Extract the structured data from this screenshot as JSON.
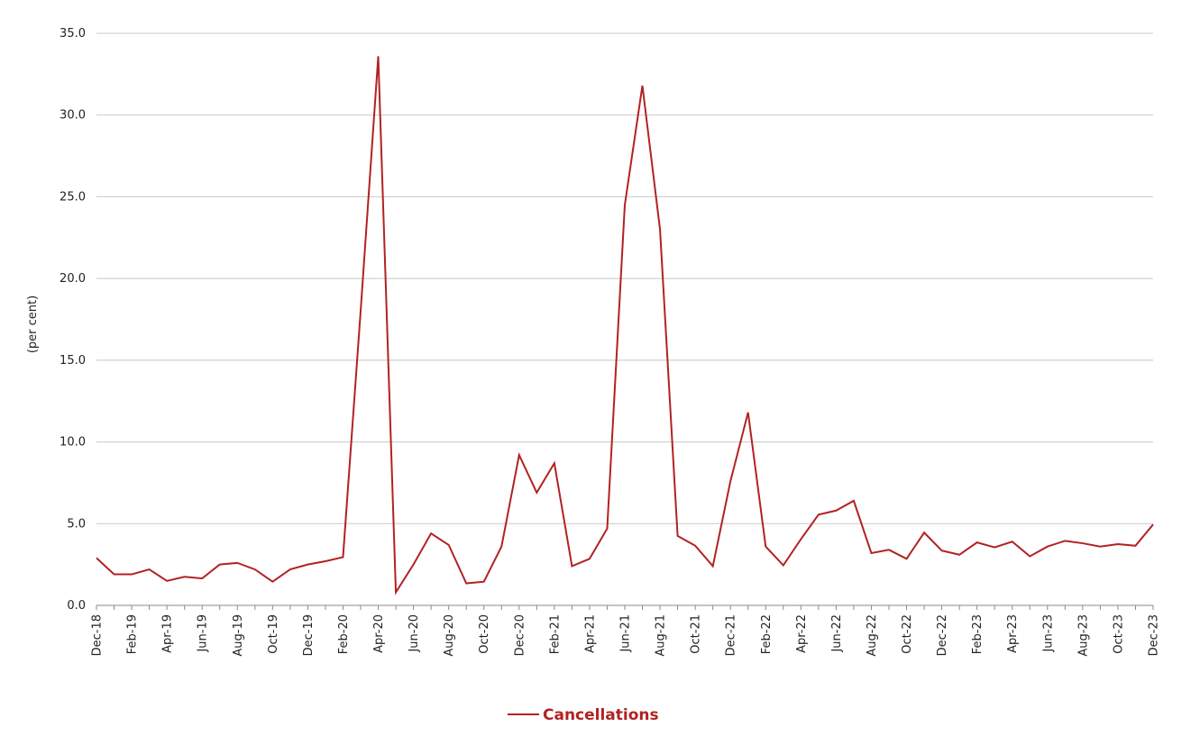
{
  "chart_data": {
    "type": "line",
    "ylabel": "(per cent)",
    "ylim": [
      0,
      35
    ],
    "yticks": [
      "0.0",
      "5.0",
      "10.0",
      "15.0",
      "20.0",
      "25.0",
      "30.0",
      "35.0"
    ],
    "ytick_values": [
      0,
      5,
      10,
      15,
      20,
      25,
      30,
      35
    ],
    "grid": true,
    "legend_position": "bottom-center",
    "x": [
      "Dec-18",
      "Jan-19",
      "Feb-19",
      "Mar-19",
      "Apr-19",
      "May-19",
      "Jun-19",
      "Jul-19",
      "Aug-19",
      "Sep-19",
      "Oct-19",
      "Nov-19",
      "Dec-19",
      "Jan-20",
      "Feb-20",
      "Mar-20",
      "Apr-20",
      "May-20",
      "Jun-20",
      "Jul-20",
      "Aug-20",
      "Sep-20",
      "Oct-20",
      "Nov-20",
      "Dec-20",
      "Jan-21",
      "Feb-21",
      "Mar-21",
      "Apr-21",
      "May-21",
      "Jun-21",
      "Jul-21",
      "Aug-21",
      "Sep-21",
      "Oct-21",
      "Nov-21",
      "Dec-21",
      "Jan-22",
      "Feb-22",
      "Mar-22",
      "Apr-22",
      "May-22",
      "Jun-22",
      "Jul-22",
      "Aug-22",
      "Sep-22",
      "Oct-22",
      "Nov-22",
      "Dec-22",
      "Jan-23",
      "Feb-23",
      "Mar-23",
      "Apr-23",
      "May-23",
      "Jun-23",
      "Jul-23",
      "Aug-23",
      "Sep-23",
      "Oct-23",
      "Nov-23",
      "Dec-23"
    ],
    "xtick_labels": [
      "Dec-18",
      "Feb-19",
      "Apr-19",
      "Jun-19",
      "Aug-19",
      "Oct-19",
      "Dec-19",
      "Feb-20",
      "Apr-20",
      "Jun-20",
      "Aug-20",
      "Oct-20",
      "Dec-20",
      "Feb-21",
      "Apr-21",
      "Jun-21",
      "Aug-21",
      "Oct-21",
      "Dec-21",
      "Feb-22",
      "Apr-22",
      "Jun-22",
      "Aug-22",
      "Oct-22",
      "Dec-22",
      "Feb-23",
      "Apr-23",
      "Jun-23",
      "Aug-23",
      "Oct-23",
      "Dec-23"
    ],
    "series": [
      {
        "name": "Cancellations",
        "color": "#b22222",
        "values": [
          2.9,
          1.9,
          1.9,
          2.2,
          1.5,
          1.75,
          1.65,
          2.5,
          2.6,
          2.2,
          1.45,
          2.2,
          2.5,
          2.7,
          2.95,
          18.0,
          33.6,
          0.8,
          2.5,
          4.4,
          3.7,
          1.35,
          1.45,
          3.6,
          9.2,
          6.9,
          8.7,
          2.4,
          2.85,
          4.7,
          24.5,
          31.8,
          23.0,
          4.25,
          3.65,
          2.4,
          7.6,
          11.8,
          3.6,
          2.45,
          4.05,
          5.55,
          5.8,
          6.4,
          3.2,
          3.4,
          2.85,
          4.45,
          3.35,
          3.1,
          3.85,
          3.55,
          3.9,
          3.0,
          3.6,
          3.95,
          3.8,
          3.6,
          3.75,
          3.65,
          4.95
        ]
      }
    ]
  }
}
